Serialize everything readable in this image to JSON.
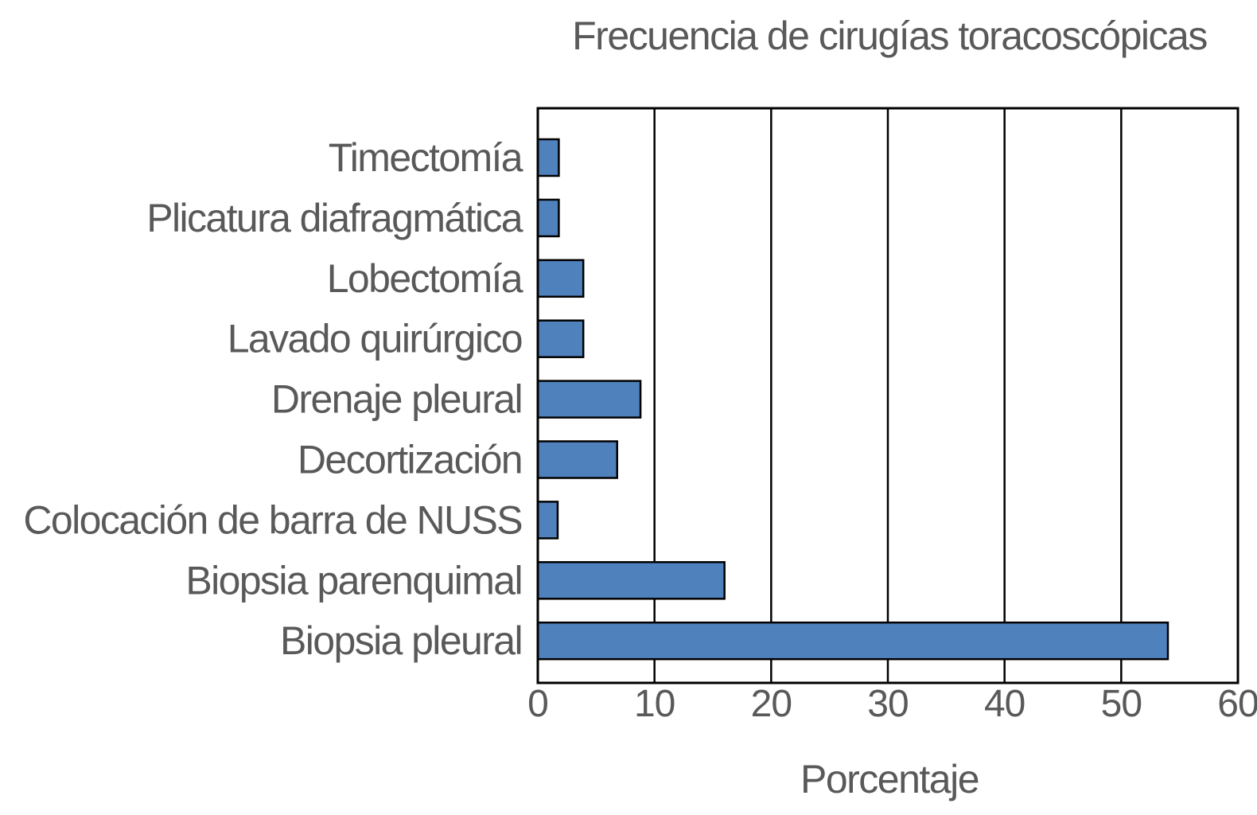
{
  "chart_data": {
    "type": "bar",
    "orientation": "horizontal",
    "title": "Frecuencia de cirugías toracoscópicas",
    "xlabel": "Porcentaje",
    "ylabel": "",
    "xlim": [
      0,
      60
    ],
    "xticks": [
      "0",
      "10",
      "20",
      "30",
      "40",
      "50",
      "60"
    ],
    "grid": "vertical",
    "categories": [
      "Timectomía",
      "Plicatura diafragmática",
      "Lobectomía",
      "Lavado quirúrgico",
      "Drenaje pleural",
      "Decortización",
      "Colocación de barra de NUSS",
      "Biopsia parenquimal",
      "Biopsia pleural"
    ],
    "values": [
      1.8,
      1.8,
      3.9,
      3.9,
      8.8,
      6.8,
      1.7,
      16,
      54
    ],
    "bar_color": "#4F81BD",
    "text_color": "#595959"
  }
}
